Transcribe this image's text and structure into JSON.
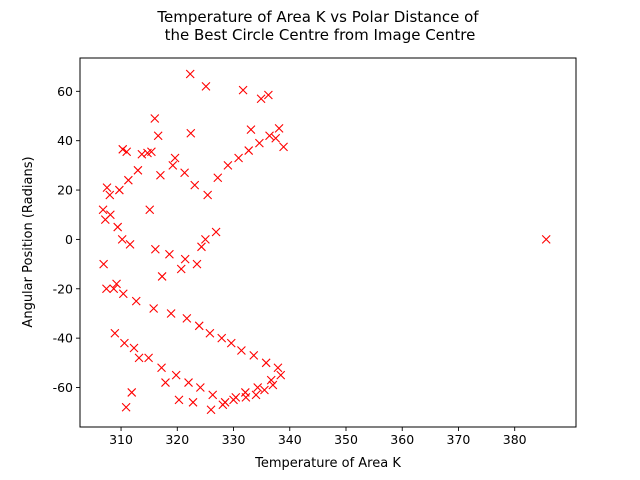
{
  "chart_data": {
    "type": "scatter",
    "title_line1": "Temperature of Area K vs Polar Distance of",
    "title_line2": "the Best Circle Centre from Image Centre",
    "xlabel": "Temperature of Area K",
    "ylabel": "Angular Position (Radians)",
    "xlim": [
      302.7,
      390.9
    ],
    "ylim": [
      -76,
      73.5
    ],
    "xticks": [
      310,
      320,
      330,
      340,
      350,
      360,
      370,
      380
    ],
    "yticks": [
      -60,
      -40,
      -20,
      0,
      20,
      40,
      60
    ],
    "grid": false,
    "legend": "none",
    "marker": "x",
    "color": "#ff0000",
    "series": [
      {
        "x": [
          322.3,
          325.1,
          331.7,
          336.2,
          334.9,
          338.9,
          333.1,
          337.5,
          316.0,
          322.4,
          316.6,
          310.3,
          311.0,
          314.7,
          313.7,
          315.4,
          319.6,
          307.5,
          308.0,
          306.8,
          307.2,
          309.4,
          310.2,
          311.6,
          316.1,
          318.6,
          321.4,
          323.5,
          325.0,
          326.9,
          324.3,
          320.7,
          317.3,
          309.2,
          308.7,
          310.4,
          312.7,
          315.8,
          318.9,
          321.7,
          323.9,
          325.8,
          327.9,
          329.6,
          331.4,
          333.6,
          335.8,
          337.9,
          338.4,
          336.7,
          334.3,
          332.1,
          330.4,
          328.5,
          326.3,
          324.1,
          322.0,
          319.8,
          317.2,
          314.9,
          312.3,
          310.6,
          308.9,
          307.4,
          306.9,
          308.1,
          309.7,
          311.3,
          313.0,
          315.1,
          317.0,
          319.2,
          321.3,
          323.1,
          325.4,
          327.2,
          329.0,
          330.9,
          332.7,
          334.6,
          336.4,
          338.1,
          311.9,
          310.9,
          313.2,
          317.9,
          320.3,
          322.8,
          326.0,
          328.1,
          330.0,
          332.2,
          334.0,
          335.5,
          337.0,
          385.6
        ],
        "y": [
          67.0,
          62.0,
          60.5,
          58.5,
          57.0,
          37.5,
          44.5,
          41.0,
          49.0,
          43.0,
          42.0,
          36.5,
          35.5,
          35.0,
          34.5,
          35.5,
          33.0,
          21.0,
          18.0,
          12.0,
          8.0,
          5.0,
          0.0,
          -2.0,
          -4.0,
          -6.0,
          -8.0,
          -10.0,
          0.0,
          3.0,
          -3.0,
          -12.0,
          -15.0,
          -18.0,
          -20.0,
          -22.0,
          -25.0,
          -28.0,
          -30.0,
          -32.0,
          -35.0,
          -38.0,
          -40.0,
          -42.0,
          -45.0,
          -47.0,
          -50.0,
          -52.0,
          -55.0,
          -57.0,
          -60.0,
          -62.0,
          -64.0,
          -66.0,
          -63.0,
          -60.0,
          -58.0,
          -55.0,
          -52.0,
          -48.0,
          -44.0,
          -42.0,
          -38.0,
          -20.0,
          -10.0,
          10.0,
          20.0,
          24.0,
          28.0,
          12.0,
          26.0,
          30.0,
          27.0,
          22.0,
          18.0,
          25.0,
          30.0,
          33.0,
          36.0,
          39.0,
          42.0,
          45.0,
          -62.0,
          -68.0,
          -48.0,
          -58.0,
          -65.0,
          -66.0,
          -69.0,
          -67.0,
          -65.0,
          -64.0,
          -63.0,
          -61.0,
          -59.0,
          0.0
        ]
      }
    ]
  }
}
